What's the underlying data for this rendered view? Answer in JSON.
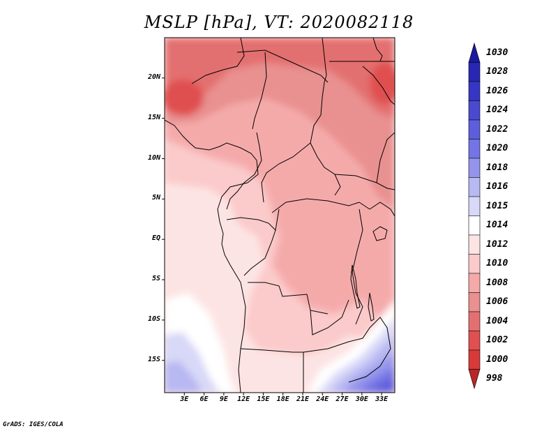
{
  "title": "MSLP [hPa], VT: 2020082118",
  "credit": "GrADS: IGES/COLA",
  "map": {
    "lon_range": [
      0,
      35
    ],
    "lat_range": [
      -19,
      25
    ],
    "y_ticks": [
      {
        "label": "20N",
        "value": 20
      },
      {
        "label": "15N",
        "value": 15
      },
      {
        "label": "10N",
        "value": 10
      },
      {
        "label": "5N",
        "value": 5
      },
      {
        "label": "EQ",
        "value": 0
      },
      {
        "label": "5S",
        "value": -5
      },
      {
        "label": "10S",
        "value": -10
      },
      {
        "label": "15S",
        "value": -15
      }
    ],
    "x_ticks": [
      {
        "label": "3E",
        "value": 3
      },
      {
        "label": "6E",
        "value": 6
      },
      {
        "label": "9E",
        "value": 9
      },
      {
        "label": "12E",
        "value": 12
      },
      {
        "label": "15E",
        "value": 15
      },
      {
        "label": "18E",
        "value": 18
      },
      {
        "label": "21E",
        "value": 21
      },
      {
        "label": "24E",
        "value": 24
      },
      {
        "label": "27E",
        "value": 27
      },
      {
        "label": "30E",
        "value": 30
      },
      {
        "label": "33E",
        "value": 33
      }
    ]
  },
  "colorbar": {
    "levels": [
      {
        "label": "1030",
        "color": "#1a1aa0"
      },
      {
        "label": "1028",
        "color": "#2727b4"
      },
      {
        "label": "1026",
        "color": "#3636c4"
      },
      {
        "label": "1024",
        "color": "#4a4ad0"
      },
      {
        "label": "1022",
        "color": "#5e5edc"
      },
      {
        "label": "1020",
        "color": "#7474e4"
      },
      {
        "label": "1018",
        "color": "#9494ec"
      },
      {
        "label": "1016",
        "color": "#b8b8f2"
      },
      {
        "label": "1015",
        "color": "#d8d8f8"
      },
      {
        "label": "1014",
        "color": "#ffffff"
      },
      {
        "label": "1012",
        "color": "#fde4e4"
      },
      {
        "label": "1010",
        "color": "#fbcaca"
      },
      {
        "label": "1008",
        "color": "#f5aaaa"
      },
      {
        "label": "1006",
        "color": "#e99090"
      },
      {
        "label": "1004",
        "color": "#e37070"
      },
      {
        "label": "1002",
        "color": "#e05050"
      },
      {
        "label": "1000",
        "color": "#d83a3a"
      },
      {
        "label": "998",
        "color": "#b82626"
      }
    ]
  }
}
